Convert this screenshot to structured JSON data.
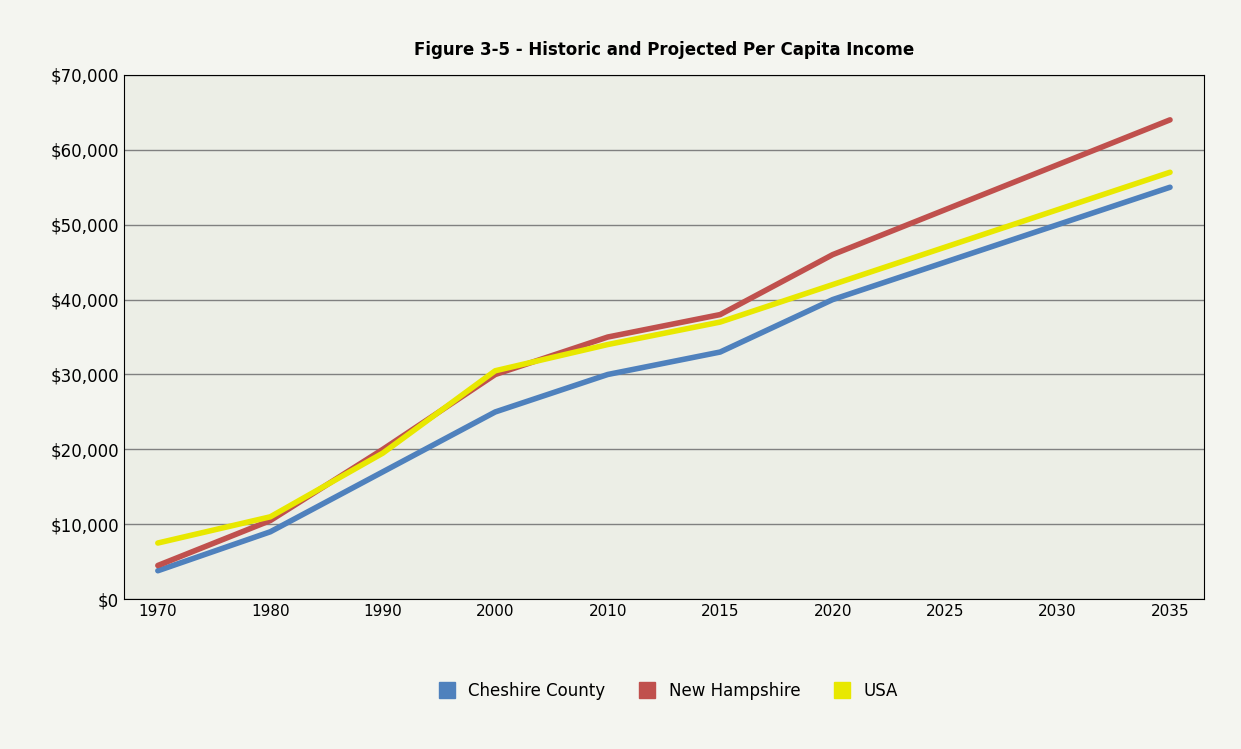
{
  "chart_data": {
    "type": "line",
    "title": "Figure 3-5 - Historic and Projected Per Capita Income",
    "categories": [
      "1970",
      "1980",
      "1990",
      "2000",
      "2010",
      "2015",
      "2020",
      "2025",
      "2030",
      "2035"
    ],
    "series": [
      {
        "name": "Cheshire County",
        "color": "#4f81bd",
        "values": [
          3800,
          9000,
          17000,
          25000,
          30000,
          33000,
          40000,
          45000,
          50000,
          55000
        ]
      },
      {
        "name": "New Hampshire",
        "color": "#c0504d",
        "values": [
          4500,
          10500,
          20000,
          30000,
          35000,
          38000,
          46000,
          52000,
          58000,
          64000
        ]
      },
      {
        "name": "USA",
        "color": "#e8e800",
        "values": [
          7500,
          11000,
          19500,
          30500,
          34000,
          37000,
          42000,
          47000,
          52000,
          57000
        ]
      }
    ],
    "ylim": [
      0,
      70000
    ],
    "yticks": [
      {
        "value": 0,
        "label": "$0"
      },
      {
        "value": 10000,
        "label": "$10,000"
      },
      {
        "value": 20000,
        "label": "$20,000"
      },
      {
        "value": 30000,
        "label": "$30,000"
      },
      {
        "value": 40000,
        "label": "$40,000"
      },
      {
        "value": 50000,
        "label": "$50,000"
      },
      {
        "value": 60000,
        "label": "$60,000"
      },
      {
        "value": 70000,
        "label": "$70,000"
      }
    ],
    "grid": true,
    "legend": "lower center"
  }
}
